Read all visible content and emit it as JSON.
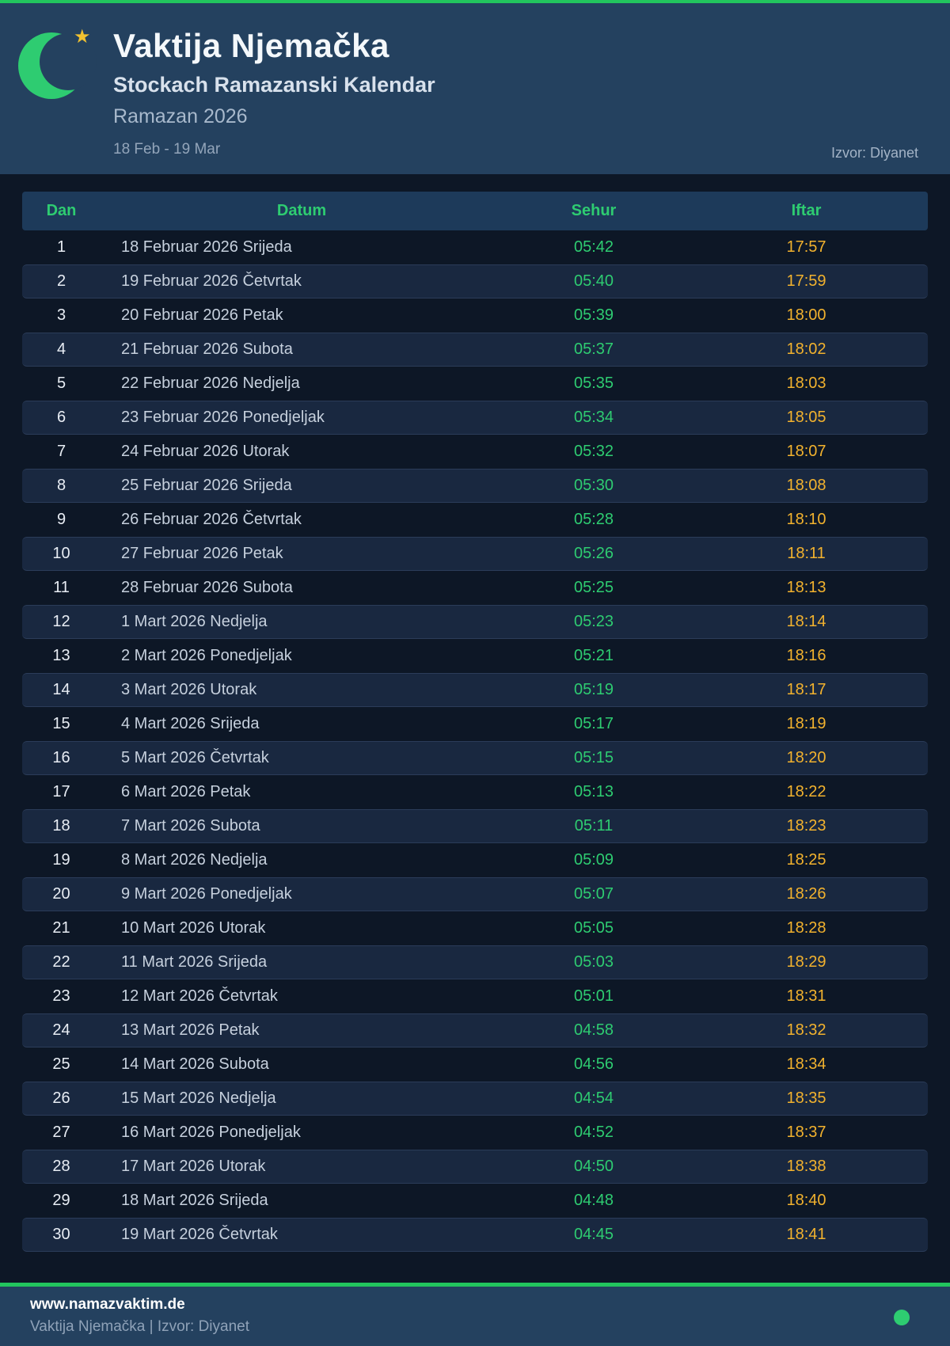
{
  "colors": {
    "accent_green": "#2ecc71",
    "topbar_green": "#22c55e",
    "iftar_yellow": "#f2b22e",
    "header_navy": "#24415f",
    "page_navy": "#0d1726",
    "star_gold": "#f2c230"
  },
  "header": {
    "title": "Vaktija Njemačka",
    "subtitle": "Stockach Ramazanski Kalendar",
    "period_title": "Ramazan 2026",
    "date_range": "18 Feb - 19 Mar",
    "source": "Izvor: Diyanet"
  },
  "icons": {
    "logo": "crescent-moon-icon",
    "star": "star-icon",
    "footer_dot": "green-dot-icon",
    "star_glyph": "★"
  },
  "table": {
    "columns": [
      "Dan",
      "Datum",
      "Sehur",
      "Iftar"
    ],
    "rows": [
      {
        "dan": "1",
        "datum": "18 Februar 2026 Srijeda",
        "sehur": "05:42",
        "iftar": "17:57"
      },
      {
        "dan": "2",
        "datum": "19 Februar 2026 Četvrtak",
        "sehur": "05:40",
        "iftar": "17:59"
      },
      {
        "dan": "3",
        "datum": "20 Februar 2026 Petak",
        "sehur": "05:39",
        "iftar": "18:00"
      },
      {
        "dan": "4",
        "datum": "21 Februar 2026 Subota",
        "sehur": "05:37",
        "iftar": "18:02"
      },
      {
        "dan": "5",
        "datum": "22 Februar 2026 Nedjelja",
        "sehur": "05:35",
        "iftar": "18:03"
      },
      {
        "dan": "6",
        "datum": "23 Februar 2026 Ponedjeljak",
        "sehur": "05:34",
        "iftar": "18:05"
      },
      {
        "dan": "7",
        "datum": "24 Februar 2026 Utorak",
        "sehur": "05:32",
        "iftar": "18:07"
      },
      {
        "dan": "8",
        "datum": "25 Februar 2026 Srijeda",
        "sehur": "05:30",
        "iftar": "18:08"
      },
      {
        "dan": "9",
        "datum": "26 Februar 2026 Četvrtak",
        "sehur": "05:28",
        "iftar": "18:10"
      },
      {
        "dan": "10",
        "datum": "27 Februar 2026 Petak",
        "sehur": "05:26",
        "iftar": "18:11"
      },
      {
        "dan": "11",
        "datum": "28 Februar 2026 Subota",
        "sehur": "05:25",
        "iftar": "18:13"
      },
      {
        "dan": "12",
        "datum": "1 Mart 2026 Nedjelja",
        "sehur": "05:23",
        "iftar": "18:14"
      },
      {
        "dan": "13",
        "datum": "2 Mart 2026 Ponedjeljak",
        "sehur": "05:21",
        "iftar": "18:16"
      },
      {
        "dan": "14",
        "datum": "3 Mart 2026 Utorak",
        "sehur": "05:19",
        "iftar": "18:17"
      },
      {
        "dan": "15",
        "datum": "4 Mart 2026 Srijeda",
        "sehur": "05:17",
        "iftar": "18:19"
      },
      {
        "dan": "16",
        "datum": "5 Mart 2026 Četvrtak",
        "sehur": "05:15",
        "iftar": "18:20"
      },
      {
        "dan": "17",
        "datum": "6 Mart 2026 Petak",
        "sehur": "05:13",
        "iftar": "18:22"
      },
      {
        "dan": "18",
        "datum": "7 Mart 2026 Subota",
        "sehur": "05:11",
        "iftar": "18:23"
      },
      {
        "dan": "19",
        "datum": "8 Mart 2026 Nedjelja",
        "sehur": "05:09",
        "iftar": "18:25"
      },
      {
        "dan": "20",
        "datum": "9 Mart 2026 Ponedjeljak",
        "sehur": "05:07",
        "iftar": "18:26"
      },
      {
        "dan": "21",
        "datum": "10 Mart 2026 Utorak",
        "sehur": "05:05",
        "iftar": "18:28"
      },
      {
        "dan": "22",
        "datum": "11 Mart 2026 Srijeda",
        "sehur": "05:03",
        "iftar": "18:29"
      },
      {
        "dan": "23",
        "datum": "12 Mart 2026 Četvrtak",
        "sehur": "05:01",
        "iftar": "18:31"
      },
      {
        "dan": "24",
        "datum": "13 Mart 2026 Petak",
        "sehur": "04:58",
        "iftar": "18:32"
      },
      {
        "dan": "25",
        "datum": "14 Mart 2026 Subota",
        "sehur": "04:56",
        "iftar": "18:34"
      },
      {
        "dan": "26",
        "datum": "15 Mart 2026 Nedjelja",
        "sehur": "04:54",
        "iftar": "18:35"
      },
      {
        "dan": "27",
        "datum": "16 Mart 2026 Ponedjeljak",
        "sehur": "04:52",
        "iftar": "18:37"
      },
      {
        "dan": "28",
        "datum": "17 Mart 2026 Utorak",
        "sehur": "04:50",
        "iftar": "18:38"
      },
      {
        "dan": "29",
        "datum": "18 Mart 2026 Srijeda",
        "sehur": "04:48",
        "iftar": "18:40"
      },
      {
        "dan": "30",
        "datum": "19 Mart 2026 Četvrtak",
        "sehur": "04:45",
        "iftar": "18:41"
      }
    ]
  },
  "footer": {
    "website": "www.namazvaktim.de",
    "tagline": "Vaktija Njemačka | Izvor: Diyanet"
  }
}
